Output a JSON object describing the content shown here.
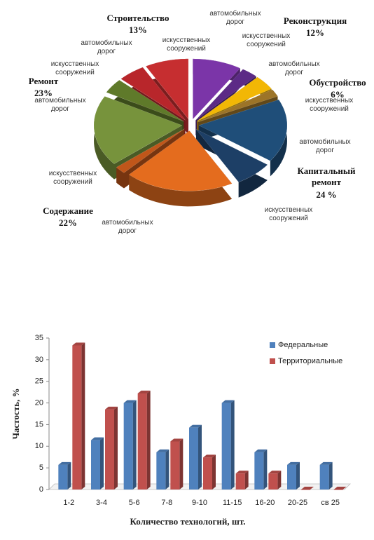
{
  "chart_data": [
    {
      "type": "pie",
      "groups": [
        {
          "name": "Реконструкция",
          "value": 12,
          "value_label": "12%",
          "parts": [
            {
              "name": "автомобильных дорог",
              "value": 9,
              "color": "#7b35a8"
            },
            {
              "name": "искусственных сооружений",
              "value": 3,
              "color": "#5c2a86"
            }
          ]
        },
        {
          "name": "Обустройство",
          "value": 6,
          "value_label": "6%",
          "parts": [
            {
              "name": "автомобильных дорог",
              "value": 4,
              "color": "#f2b705"
            },
            {
              "name": "искусственных сооружений",
              "value": 2,
              "color": "#9c7428"
            }
          ]
        },
        {
          "name": "Капитальный ремонт",
          "value": 24,
          "value_label": "24 %",
          "parts": [
            {
              "name": "автомобильных дорог",
              "value": 17,
              "color": "#1f4e79"
            },
            {
              "name": "искусственных сооружений",
              "value": 7,
              "color": "#1d3f66"
            }
          ]
        },
        {
          "name": "Содержание",
          "value": 22,
          "value_label": "22%",
          "parts": [
            {
              "name": "автомобильных дорог",
              "value": 20,
              "color": "#e46c1e"
            },
            {
              "name": "искусственных сооружений",
              "value": 2,
              "color": "#c0561a"
            }
          ]
        },
        {
          "name": "Ремонт",
          "value": 23,
          "value_label": "23%",
          "parts": [
            {
              "name": "автомобильных дорог",
              "value": 19,
              "color": "#77933c"
            },
            {
              "name": "искусственных сооружений",
              "value": 4,
              "color": "#5f7a2a"
            }
          ]
        },
        {
          "name": "Строительство",
          "value": 13,
          "value_label": "13%",
          "parts": [
            {
              "name": "автомобильных дорог",
              "value": 5,
              "color": "#b8262b"
            },
            {
              "name": "искусственных сооружений",
              "value": 8,
              "color": "#c62e30"
            }
          ]
        }
      ]
    },
    {
      "type": "bar",
      "x_label": "Количество технологий, шт.",
      "y_label": "Частость, %",
      "categories": [
        "1-2",
        "3-4",
        "5-6",
        "7-8",
        "9-10",
        "11-15",
        "16-20",
        "20-25",
        "св 25"
      ],
      "series": [
        {
          "name": "Федеральные",
          "color": "#4f81bd",
          "values": [
            5.7,
            11.4,
            20,
            8.6,
            14.3,
            20,
            8.6,
            5.7,
            5.7
          ]
        },
        {
          "name": "Территориальные",
          "color": "#c0504d",
          "values": [
            33.3,
            18.5,
            22.2,
            11.1,
            7.4,
            3.7,
            3.7,
            0,
            0
          ]
        }
      ],
      "ylim": [
        0,
        35
      ],
      "yticks": [
        0,
        5,
        10,
        15,
        20,
        25,
        30,
        35
      ],
      "legend": "top-right"
    }
  ]
}
